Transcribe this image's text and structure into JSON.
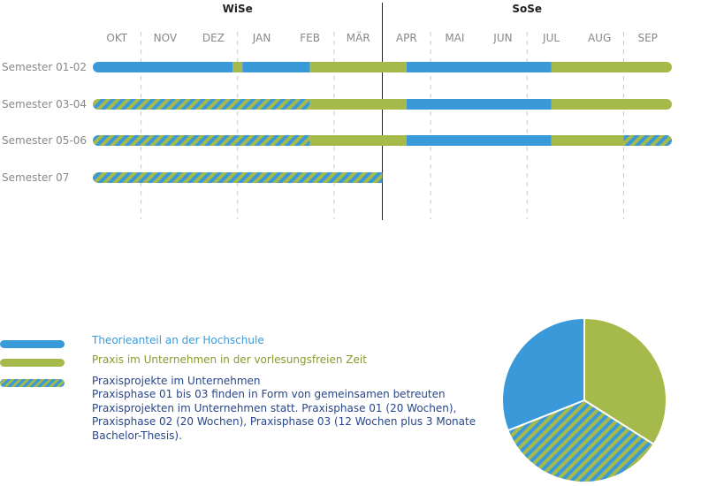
{
  "chart_data": {
    "type": "gantt",
    "seasons": [
      {
        "label": "WiSe",
        "months": [
          "OKT",
          "NOV",
          "DEZ",
          "JAN",
          "FEB",
          "MÄR"
        ]
      },
      {
        "label": "SoSe",
        "months": [
          "APR",
          "MAI",
          "JUN",
          "JUL",
          "AUG",
          "SEP"
        ]
      }
    ],
    "months": [
      "OKT",
      "NOV",
      "DEZ",
      "JAN",
      "FEB",
      "MÄR",
      "APR",
      "MAI",
      "JUN",
      "JUL",
      "AUG",
      "SEP"
    ],
    "rows": [
      {
        "label": "Semester 01-02",
        "segments": [
          {
            "type": "theory",
            "start": 0.0,
            "end": 2.9
          },
          {
            "type": "practice",
            "start": 2.9,
            "end": 3.1
          },
          {
            "type": "theory",
            "start": 3.1,
            "end": 4.5
          },
          {
            "type": "practice",
            "start": 4.5,
            "end": 6.5
          },
          {
            "type": "theory",
            "start": 6.5,
            "end": 9.5
          },
          {
            "type": "practice",
            "start": 9.5,
            "end": 12.0
          }
        ]
      },
      {
        "label": "Semester 03-04",
        "segments": [
          {
            "type": "project",
            "start": 0.0,
            "end": 4.5
          },
          {
            "type": "practice",
            "start": 4.5,
            "end": 6.5
          },
          {
            "type": "theory",
            "start": 6.5,
            "end": 9.5
          },
          {
            "type": "practice",
            "start": 9.5,
            "end": 12.0
          }
        ]
      },
      {
        "label": "Semester 05-06",
        "segments": [
          {
            "type": "project",
            "start": 0.0,
            "end": 4.5
          },
          {
            "type": "practice",
            "start": 4.5,
            "end": 6.5
          },
          {
            "type": "theory",
            "start": 6.5,
            "end": 9.5
          },
          {
            "type": "practice",
            "start": 9.5,
            "end": 11.0
          },
          {
            "type": "project",
            "start": 11.0,
            "end": 12.0
          }
        ]
      },
      {
        "label": "Semester 07",
        "segments": [
          {
            "type": "project",
            "start": 0.0,
            "end": 6.0
          }
        ]
      }
    ],
    "pie": [
      {
        "type": "practice",
        "value": 34
      },
      {
        "type": "project",
        "value": 35
      },
      {
        "type": "theory",
        "value": 31
      }
    ]
  },
  "colors": {
    "theory": "#3a9ad9",
    "practice": "#a6b94b",
    "text_gray": "#888888",
    "grid": "#c8c8c8",
    "divider": "#222222"
  },
  "legend": {
    "theory": "Theorieanteil an der Hochschule",
    "practice": "Praxis im Unternehmen in der vorlesungsfreien Zeit",
    "project": "Praxisprojekte im Unternehmen",
    "project_desc": [
      "Praxisphase 01 bis 03 finden in Form von gemeinsamen betreuten",
      "Praxisprojekten im Unternehmen statt. Praxisphase 01 (20 Wochen),",
      "Praxisphase 02 (20 Wochen), Praxisphase 03 (12 Wochen plus 3 Monate",
      "Bachelor-Thesis)."
    ]
  }
}
